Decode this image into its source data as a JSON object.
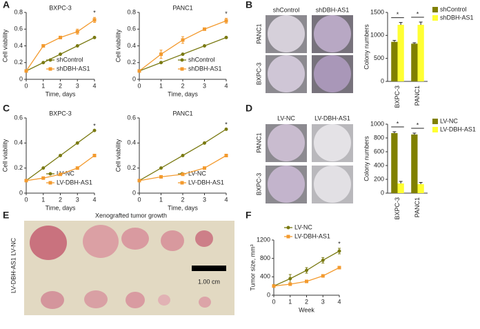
{
  "chart_data": [
    {
      "type": "line",
      "title": "BXPC-3",
      "x_label": "Time, days",
      "y_label": "Cell viability",
      "x": [
        0,
        1,
        2,
        3,
        4
      ],
      "xlim": [
        0,
        4
      ],
      "xticks": [
        0,
        1,
        2,
        3,
        4
      ],
      "ylim": [
        0,
        0.8
      ],
      "yticks": [
        0,
        0.2,
        0.4,
        0.6,
        0.8
      ],
      "legend": "lower right",
      "annotation": "*",
      "series": [
        {
          "name": "shControl",
          "color": "#7a7a12",
          "marker": "circle",
          "values": [
            0.1,
            0.2,
            0.3,
            0.4,
            0.5
          ]
        },
        {
          "name": "shDBH-AS1",
          "color": "#f39a2e",
          "marker": "square",
          "values": [
            0.1,
            0.4,
            0.5,
            0.57,
            0.71
          ],
          "errors": [
            0.01,
            0.01,
            0.01,
            0.03,
            0.03
          ]
        }
      ]
    },
    {
      "type": "line",
      "title": "PANC1",
      "x_label": "Time, days",
      "y_label": "Cell viability",
      "x": [
        0,
        1,
        2,
        3,
        4
      ],
      "xlim": [
        0,
        4
      ],
      "xticks": [
        0,
        1,
        2,
        3,
        4
      ],
      "ylim": [
        0,
        0.8
      ],
      "yticks": [
        0,
        0.2,
        0.4,
        0.6,
        0.8
      ],
      "legend": "lower right",
      "annotation": "*",
      "series": [
        {
          "name": "shControl",
          "color": "#7a7a12",
          "marker": "circle",
          "values": [
            0.1,
            0.2,
            0.3,
            0.4,
            0.5
          ]
        },
        {
          "name": "shDBH-AS1",
          "color": "#f39a2e",
          "marker": "square",
          "values": [
            0.1,
            0.3,
            0.47,
            0.6,
            0.7
          ],
          "errors": [
            0.01,
            0.05,
            0.04,
            0.01,
            0.03
          ]
        }
      ]
    },
    {
      "type": "line",
      "title": "BXPC-3",
      "x_label": "Time, days",
      "y_label": "Cell viability",
      "x": [
        0,
        1,
        2,
        3,
        4
      ],
      "xlim": [
        0,
        4
      ],
      "xticks": [
        0,
        1,
        2,
        3,
        4
      ],
      "ylim": [
        0,
        0.6
      ],
      "yticks": [
        0,
        0.2,
        0.4,
        0.6
      ],
      "legend": "lower right",
      "annotation": "*",
      "series": [
        {
          "name": "LV-NC",
          "color": "#7a7a12",
          "marker": "circle",
          "values": [
            0.1,
            0.2,
            0.3,
            0.4,
            0.5
          ]
        },
        {
          "name": "LV-DBH-AS1",
          "color": "#f39a2e",
          "marker": "square",
          "values": [
            0.1,
            0.12,
            0.15,
            0.2,
            0.3
          ]
        }
      ]
    },
    {
      "type": "line",
      "title": "PANC1",
      "x_label": "Time, days",
      "y_label": "Cell viability",
      "x": [
        0,
        1,
        2,
        3,
        4
      ],
      "xlim": [
        0,
        4
      ],
      "xticks": [
        0,
        1,
        2,
        3,
        4
      ],
      "ylim": [
        0,
        0.6
      ],
      "yticks": [
        0,
        0.2,
        0.4,
        0.6
      ],
      "legend": "lower right",
      "annotation": "*",
      "series": [
        {
          "name": "LV-NC",
          "color": "#7a7a12",
          "marker": "circle",
          "values": [
            0.1,
            0.2,
            0.3,
            0.4,
            0.51
          ]
        },
        {
          "name": "LV-DBH-AS1",
          "color": "#f39a2e",
          "marker": "square",
          "values": [
            0.1,
            0.13,
            0.15,
            0.2,
            0.3
          ]
        }
      ]
    },
    {
      "type": "bar",
      "y_label": "Colony numbers",
      "categories": [
        "BXPC-3",
        "PANC1"
      ],
      "ylim": [
        0,
        1500
      ],
      "yticks": [
        0,
        500,
        1000,
        1500
      ],
      "legend": "right",
      "annotations": [
        "*",
        "*"
      ],
      "series": [
        {
          "name": "shControl",
          "color": "#808000",
          "values": [
            860,
            820
          ],
          "errors": [
            30,
            20
          ]
        },
        {
          "name": "shDBH-AS1",
          "color": "#ffff33",
          "values": [
            1230,
            1230
          ],
          "errors": [
            50,
            60
          ]
        }
      ]
    },
    {
      "type": "bar",
      "y_label": "Colony numbers",
      "categories": [
        "BXPC-3",
        "PANC1"
      ],
      "ylim": [
        0,
        1000
      ],
      "yticks": [
        0,
        200,
        400,
        600,
        800,
        1000
      ],
      "legend": "right",
      "annotations": [
        "*",
        "*"
      ],
      "series": [
        {
          "name": "LV-NC",
          "color": "#808000",
          "values": [
            870,
            850
          ],
          "errors": [
            20,
            20
          ]
        },
        {
          "name": "LV-DBH-AS1",
          "color": "#ffff33",
          "values": [
            140,
            130
          ],
          "errors": [
            30,
            25
          ]
        }
      ]
    },
    {
      "type": "line",
      "x_label": "Week",
      "y_label": "Tumor size, mm³",
      "x": [
        0,
        1,
        2,
        3,
        4
      ],
      "xlim": [
        0,
        4
      ],
      "xticks": [
        0,
        1,
        2,
        3,
        4
      ],
      "ylim": [
        0,
        1200
      ],
      "yticks": [
        0,
        400,
        800,
        1200
      ],
      "legend": "upper left",
      "annotation": "*",
      "series": [
        {
          "name": "LV-NC",
          "color": "#7a7a12",
          "marker": "circle",
          "values": [
            200,
            360,
            540,
            760,
            960
          ],
          "errors": [
            30,
            90,
            60,
            60,
            60
          ]
        },
        {
          "name": "LV-DBH-AS1",
          "color": "#f39a2e",
          "marker": "square",
          "values": [
            200,
            240,
            300,
            420,
            600
          ],
          "errors": [
            10,
            10,
            10,
            10,
            10
          ]
        }
      ]
    }
  ],
  "panel_letters": [
    "A",
    "B",
    "C",
    "D",
    "E",
    "F"
  ],
  "colony_b": {
    "columns": [
      "shControl",
      "shDBH-AS1"
    ],
    "rows": [
      "PANC1",
      "BXPC-3"
    ]
  },
  "colony_d": {
    "columns": [
      "LV-NC",
      "LV-DBH-AS1"
    ],
    "rows": [
      "PANC1",
      "BXPC-3"
    ]
  },
  "xenograft": {
    "title": "Xenografted tumor growth",
    "row_label": "LV-DBH-AS1 LV-NC",
    "scale_bar": "1.00 cm"
  }
}
